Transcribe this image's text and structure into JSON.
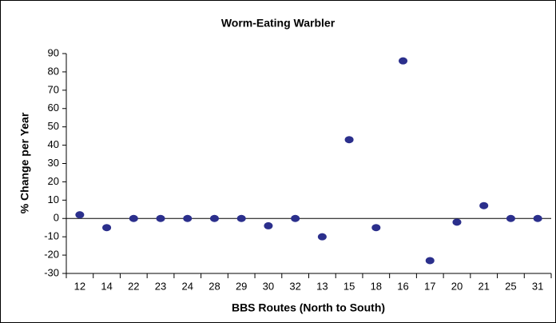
{
  "chart_data": {
    "type": "scatter",
    "title": "Worm-Eating Warbler",
    "x_label": "BBS Routes (North to South)",
    "y_label": "% Change per Year",
    "categories": [
      "12",
      "14",
      "22",
      "23",
      "24",
      "28",
      "29",
      "30",
      "32",
      "13",
      "15",
      "18",
      "16",
      "17",
      "20",
      "21",
      "25",
      "31"
    ],
    "values": [
      2,
      -5,
      0,
      0,
      0,
      0,
      0,
      -4,
      0,
      -10,
      43,
      -5,
      86,
      -23,
      -2,
      7,
      0,
      0
    ],
    "color": "#2b2f8c",
    "ylim": [
      -30,
      90
    ],
    "yticks": [
      -30,
      -20,
      -10,
      0,
      10,
      20,
      30,
      40,
      50,
      60,
      70,
      80,
      90
    ],
    "grid": false
  }
}
